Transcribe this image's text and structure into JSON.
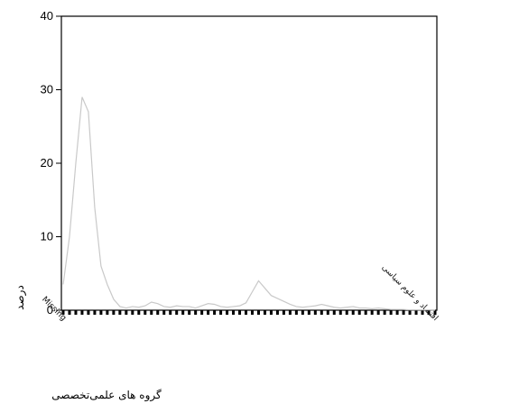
{
  "chart_data": {
    "type": "line",
    "title": "",
    "xlabel": "گروه های علمی‌تخصصی",
    "ylabel": "درصد",
    "ylim": [
      0,
      40
    ],
    "y_ticks": [
      0,
      10,
      20,
      30,
      40
    ],
    "grid": false,
    "legend": "none",
    "line_color": "#c9c9c9",
    "categories": [
      "Missing",
      "",
      "",
      "",
      "",
      "",
      "",
      "",
      "",
      "",
      "",
      "",
      "",
      "",
      "",
      "",
      "",
      "",
      "",
      "",
      "",
      "",
      "",
      "",
      "",
      "",
      "",
      "",
      "",
      "",
      "",
      "",
      "",
      "",
      "",
      "",
      "",
      "",
      "",
      "",
      "",
      "",
      "",
      "",
      "",
      "",
      "",
      "",
      "",
      "",
      "",
      "",
      "",
      "",
      "",
      "",
      "",
      "",
      "",
      "اقتصاد و علوم سیاسی"
    ],
    "series": [
      {
        "values": [
          3.5,
          10,
          20,
          29,
          27,
          14,
          6,
          3.5,
          1.5,
          0.5,
          0.3,
          0.5,
          0.4,
          0.6,
          1.1,
          0.9,
          0.5,
          0.4,
          0.6,
          0.5,
          0.5,
          0.3,
          0.6,
          0.9,
          0.8,
          0.5,
          0.4,
          0.5,
          0.6,
          1.0,
          2.5,
          4.0,
          3.0,
          2.0,
          1.6,
          1.2,
          0.8,
          0.5,
          0.4,
          0.5,
          0.6,
          0.8,
          0.6,
          0.4,
          0.3,
          0.4,
          0.5,
          0.3,
          0.3,
          0.2,
          0.3,
          0.2,
          0.1,
          0.1,
          0.1,
          0.05,
          0.05,
          0.05,
          0.05,
          0
        ]
      }
    ]
  }
}
